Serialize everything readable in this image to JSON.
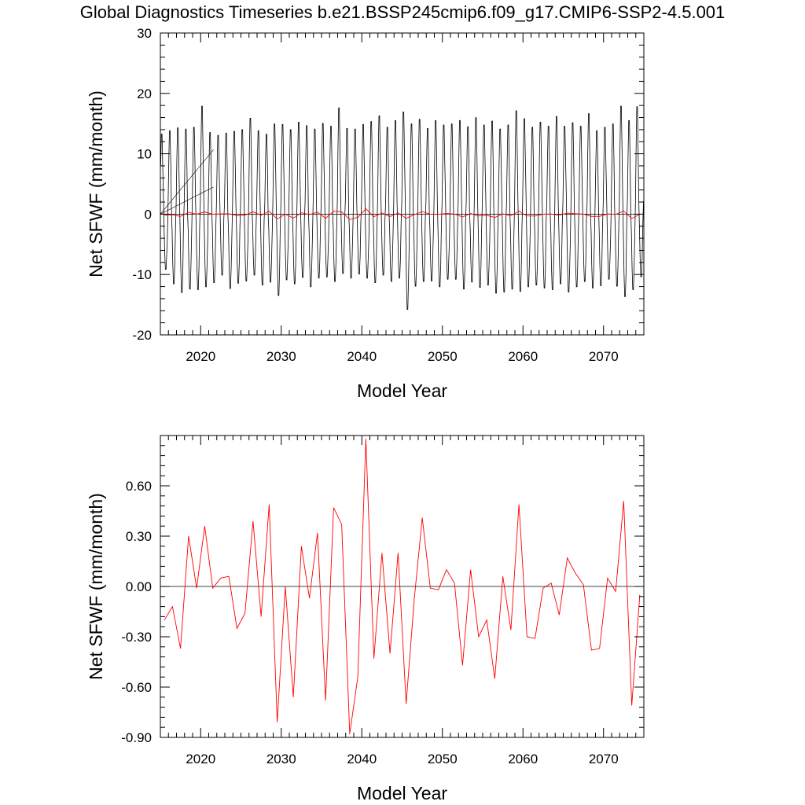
{
  "title": "Global Diagnostics Timeseries b.e21.BSSP245cmip6.f09_g17.CMIP6-SSP2-4.5.001",
  "colors": {
    "monthly": "#000000",
    "annual": "#ff0000",
    "zero_line": "#000000"
  },
  "chart_data": [
    {
      "type": "line",
      "xlabel": "Model Year",
      "ylabel": "Net SFWF (mm/month)",
      "xlim": [
        2015,
        2075
      ],
      "ylim": [
        -20,
        30
      ],
      "x_ticks": [
        2020,
        2030,
        2040,
        2050,
        2060,
        2070
      ],
      "y_ticks": [
        -20,
        -10,
        0,
        10,
        20,
        30
      ],
      "y_tick_labels": [
        "-20",
        "-10",
        "0",
        "10",
        "20",
        "30"
      ],
      "series": [
        {
          "kind": "monthly",
          "style": "seasonal oscillation, approximately 14 mm/month peaks and -11 mm/month troughs per year",
          "x_start": 2015.04,
          "yearly_max": [
            14.0,
            14.6,
            15.1,
            14.9,
            15.2,
            18.9,
            14.3,
            13.8,
            14.2,
            14.5,
            14.8,
            16.8,
            14.6,
            14.0,
            15.8,
            15.7,
            14.8,
            16.1,
            15.5,
            14.9,
            15.9,
            15.4,
            18.6,
            15.0,
            14.9,
            15.7,
            16.2,
            17.2,
            15.2,
            16.4,
            17.9,
            15.8,
            16.6,
            15.0,
            16.4,
            15.6,
            15.8,
            16.4,
            15.3,
            16.9,
            15.6,
            16.3,
            14.9,
            15.6,
            18.1,
            16.7,
            15.2,
            16.1,
            15.4,
            17.1,
            15.4,
            16.0,
            15.4,
            17.6,
            14.6,
            15.2,
            15.8,
            18.9,
            16.4,
            18.8
          ],
          "yearly_min": [
            -9.5,
            -12.0,
            -13.5,
            -12.9,
            -13.0,
            -12.5,
            -11.8,
            -10.5,
            -12.8,
            -11.9,
            -11.5,
            -10.5,
            -12.2,
            -11.7,
            -14.0,
            -11.3,
            -12.0,
            -10.9,
            -12.5,
            -11.0,
            -10.8,
            -11.6,
            -10.2,
            -11.0,
            -10.3,
            -11.0,
            -11.8,
            -10.5,
            -11.6,
            -11.0,
            -16.4,
            -12.4,
            -11.6,
            -11.5,
            -12.5,
            -11.2,
            -11.2,
            -12.9,
            -11.7,
            -12.6,
            -12.2,
            -13.6,
            -13.4,
            -12.9,
            -13.3,
            -12.5,
            -12.2,
            -12.7,
            -13.0,
            -12.0,
            -13.4,
            -12.5,
            -11.6,
            -12.7,
            -12.3,
            -11.2,
            -12.4,
            -14.2,
            -13.0,
            -10.8
          ]
        },
        {
          "kind": "annual",
          "x": [
            2015.5,
            2016.5,
            2017.5,
            2018.5,
            2019.5,
            2020.5,
            2021.5,
            2022.5,
            2023.5,
            2024.5,
            2025.5,
            2026.5,
            2027.5,
            2028.5,
            2029.5,
            2030.5,
            2031.5,
            2032.5,
            2033.5,
            2034.5,
            2035.5,
            2036.5,
            2037.5,
            2038.5,
            2039.5,
            2040.5,
            2041.5,
            2042.5,
            2043.5,
            2044.5,
            2045.5,
            2046.5,
            2047.5,
            2048.5,
            2049.5,
            2050.5,
            2051.5,
            2052.5,
            2053.5,
            2054.5,
            2055.5,
            2056.5,
            2057.5,
            2058.5,
            2059.5,
            2060.5,
            2061.5,
            2062.5,
            2063.5,
            2064.5,
            2065.5,
            2066.5,
            2067.5,
            2068.5,
            2069.5,
            2070.5,
            2071.5,
            2072.5,
            2073.5,
            2074.5
          ],
          "y": [
            -0.2,
            -0.12,
            -0.37,
            0.3,
            -0.01,
            0.36,
            -0.01,
            0.05,
            0.06,
            -0.25,
            -0.16,
            0.39,
            -0.18,
            0.49,
            -0.81,
            0.0,
            -0.66,
            0.24,
            -0.07,
            0.32,
            -0.68,
            0.47,
            0.37,
            -0.88,
            -0.54,
            0.88,
            -0.43,
            0.2,
            -0.4,
            0.2,
            -0.7,
            -0.08,
            0.41,
            -0.01,
            -0.02,
            0.1,
            0.02,
            -0.47,
            0.1,
            -0.3,
            -0.2,
            -0.55,
            0.06,
            -0.26,
            0.49,
            -0.3,
            -0.31,
            -0.01,
            0.02,
            -0.17,
            0.17,
            0.08,
            0.01,
            -0.38,
            -0.37,
            0.05,
            -0.03,
            0.51,
            -0.71,
            -0.05
          ]
        }
      ]
    },
    {
      "type": "line",
      "xlabel": "Model Year",
      "ylabel": "Net SFWF (mm/month)",
      "xlim": [
        2015,
        2075
      ],
      "ylim": [
        -0.9,
        0.9
      ],
      "x_ticks": [
        2020,
        2030,
        2040,
        2050,
        2060,
        2070
      ],
      "y_ticks": [
        -0.9,
        -0.6,
        -0.3,
        0.0,
        0.3,
        0.6
      ],
      "y_tick_labels": [
        "-0.90",
        "-0.60",
        "-0.30",
        "0.00",
        "0.30",
        "0.60"
      ],
      "series": [
        {
          "kind": "annual",
          "x": [
            2015.5,
            2016.5,
            2017.5,
            2018.5,
            2019.5,
            2020.5,
            2021.5,
            2022.5,
            2023.5,
            2024.5,
            2025.5,
            2026.5,
            2027.5,
            2028.5,
            2029.5,
            2030.5,
            2031.5,
            2032.5,
            2033.5,
            2034.5,
            2035.5,
            2036.5,
            2037.5,
            2038.5,
            2039.5,
            2040.5,
            2041.5,
            2042.5,
            2043.5,
            2044.5,
            2045.5,
            2046.5,
            2047.5,
            2048.5,
            2049.5,
            2050.5,
            2051.5,
            2052.5,
            2053.5,
            2054.5,
            2055.5,
            2056.5,
            2057.5,
            2058.5,
            2059.5,
            2060.5,
            2061.5,
            2062.5,
            2063.5,
            2064.5,
            2065.5,
            2066.5,
            2067.5,
            2068.5,
            2069.5,
            2070.5,
            2071.5,
            2072.5,
            2073.5,
            2074.5
          ],
          "y": [
            -0.2,
            -0.12,
            -0.37,
            0.3,
            -0.01,
            0.36,
            -0.01,
            0.05,
            0.06,
            -0.25,
            -0.16,
            0.39,
            -0.18,
            0.49,
            -0.81,
            0.0,
            -0.66,
            0.24,
            -0.07,
            0.32,
            -0.68,
            0.47,
            0.37,
            -0.88,
            -0.54,
            0.88,
            -0.43,
            0.2,
            -0.4,
            0.2,
            -0.7,
            -0.08,
            0.41,
            -0.01,
            -0.02,
            0.1,
            0.02,
            -0.47,
            0.1,
            -0.3,
            -0.2,
            -0.55,
            0.06,
            -0.26,
            0.49,
            -0.3,
            -0.31,
            -0.01,
            0.02,
            -0.17,
            0.17,
            0.08,
            0.01,
            -0.38,
            -0.37,
            0.05,
            -0.03,
            0.51,
            -0.71,
            -0.05
          ]
        }
      ]
    }
  ]
}
